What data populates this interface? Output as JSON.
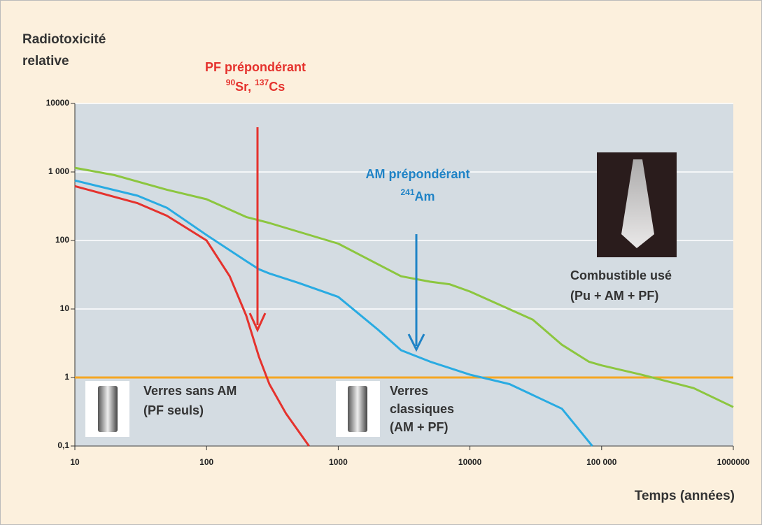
{
  "chart_data": {
    "type": "line",
    "y_label": [
      "Radiotoxicité",
      "relative"
    ],
    "x_label": "Temps (années)",
    "log_x": true,
    "log_y": true,
    "grid": true,
    "xlim": [
      10,
      1000000
    ],
    "ylim": [
      0.1,
      10000
    ],
    "xticks": [
      10,
      100,
      1000,
      10000,
      {
        "value": 100000,
        "label": "100 000"
      },
      1000000
    ],
    "yticks": [
      10000,
      {
        "value": 1000,
        "label": "1 000"
      },
      100,
      10,
      1,
      {
        "value": 0.1,
        "label": "0,1"
      }
    ],
    "reference_line": {
      "value": 1,
      "color": "#f5a623"
    },
    "series": [
      {
        "color": "#8cc63f",
        "x": [
          10,
          20,
          50,
          100,
          200,
          300,
          1000,
          3000,
          5000,
          7000,
          10000,
          30000,
          50000,
          80000,
          100000,
          200000,
          500000,
          1000000
        ],
        "values": [
          1150,
          900,
          550,
          400,
          220,
          180,
          90,
          30,
          25,
          23,
          18,
          7,
          3,
          1.7,
          1.5,
          1.1,
          0.7,
          0.37
        ]
      },
      {
        "color": "#29abe2",
        "x": [
          10,
          30,
          50,
          100,
          200,
          250,
          300,
          500,
          1000,
          2000,
          3000,
          5000,
          10000,
          20000,
          50000,
          85000
        ],
        "values": [
          750,
          450,
          300,
          120,
          50,
          38,
          33,
          24,
          15,
          5,
          2.5,
          1.7,
          1.1,
          0.8,
          0.35,
          0.1
        ]
      },
      {
        "color": "#e5322d",
        "x": [
          10,
          30,
          50,
          100,
          150,
          200,
          250,
          300,
          400,
          600
        ],
        "values": [
          620,
          350,
          230,
          100,
          30,
          8,
          2,
          0.8,
          0.3,
          0.1
        ]
      }
    ],
    "annotations": {
      "pf": {
        "title": "PF prépondérant",
        "nuclides": [
          "90",
          "Sr, ",
          "137",
          "Cs"
        ]
      },
      "am": {
        "title": "AM prépondérant",
        "nuclides": [
          "241",
          "Am"
        ]
      },
      "fuel": [
        "Combustible usé",
        "(Pu + AM + PF)"
      ],
      "glass_no_am": [
        "Verres sans AM",
        "(PF seuls)"
      ],
      "glass_classic": [
        "Verres",
        "classiques",
        "(AM + PF)"
      ]
    }
  }
}
